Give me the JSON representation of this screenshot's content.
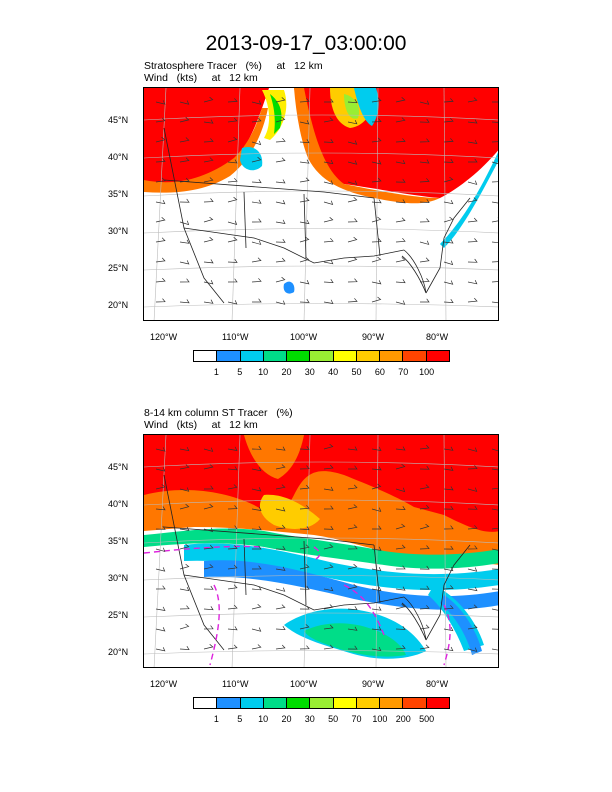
{
  "title": "2013-09-17_03:00:00",
  "panels": [
    {
      "line1": "Stratosphere Tracer   (%)     at   12 km",
      "line2": "Wind   (kts)     at   12 km",
      "lon_ticks": [
        "120°W",
        "110°W",
        "100°W",
        "90°W",
        "80°W"
      ],
      "lat_ticks": [
        "45°N",
        "40°N",
        "35°N",
        "30°N",
        "25°N",
        "20°N"
      ],
      "colorbar_labels": [
        "1",
        "5",
        "10",
        "20",
        "30",
        "40",
        "50",
        "60",
        "70",
        "100"
      ]
    },
    {
      "line1": "8-14 km column ST Tracer   (%)",
      "line2": "Wind   (kts)     at   12 km",
      "lon_ticks": [
        "120°W",
        "110°W",
        "100°W",
        "90°W",
        "80°W"
      ],
      "lat_ticks": [
        "45°N",
        "40°N",
        "35°N",
        "30°N",
        "25°N",
        "20°N"
      ],
      "colorbar_labels": [
        "1",
        "5",
        "10",
        "20",
        "30",
        "50",
        "70",
        "100",
        "200",
        "500"
      ]
    }
  ],
  "colorbar_colors": [
    "#ffffff",
    "#1e90ff",
    "#00ccee",
    "#00dd88",
    "#00dd00",
    "#99ee33",
    "#ffff00",
    "#ffcc00",
    "#ff9900",
    "#ff4400",
    "#ff0000"
  ],
  "icons": [
    "wind-barb-icon"
  ]
}
